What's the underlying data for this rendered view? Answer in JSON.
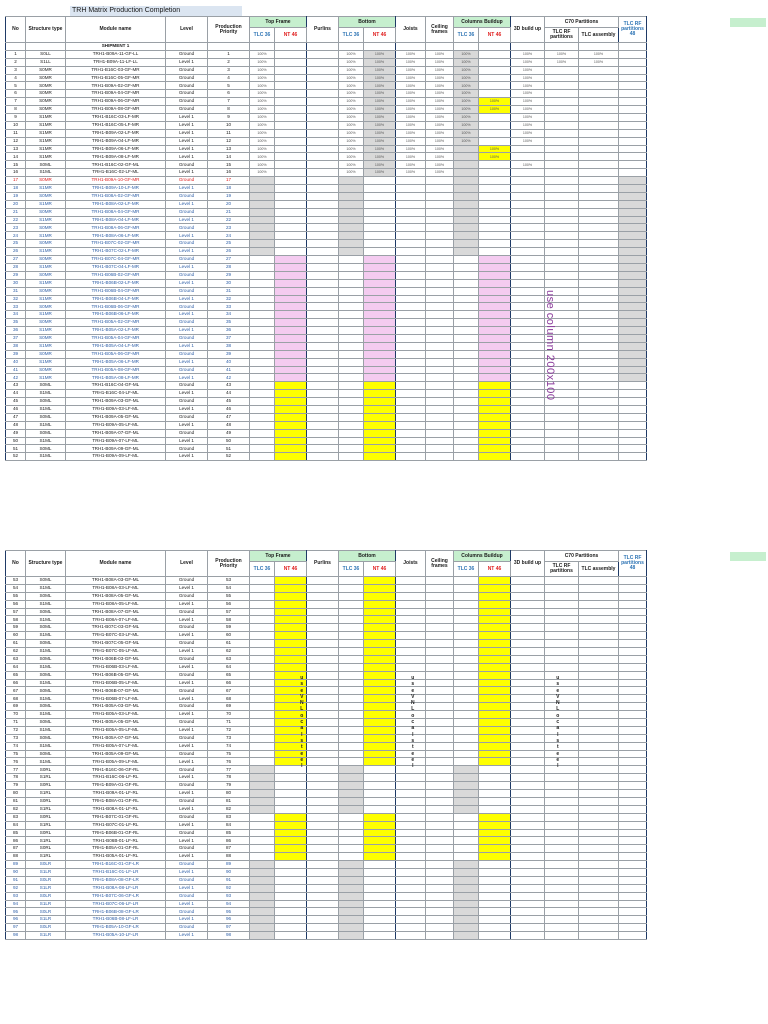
{
  "title": "TRH Matrix Production Completion",
  "headers": {
    "no": "No",
    "structure_type": "Structure type",
    "module_name": "Module name",
    "level": "Level",
    "priority": "Production Priority",
    "top_frame": "Top Frame",
    "purlins": "Purlins",
    "bottom": "Bottom",
    "joists": "Joists",
    "ceiling_frames": "Ceiling frames",
    "columns_buildup": "Columns Buildup",
    "build_3d": "3D build up",
    "c70": "C70 Partitions",
    "tlc_rf": "TLC RF partitions",
    "tlc_assembly": "TLC assembly",
    "tlc_rf_48": "TLC RF partitions 48",
    "tlc36": "TLC 36",
    "nt46": "NT 46"
  },
  "shipment_label": "SHIPMENT 1",
  "pct": "100%",
  "annotations": {
    "column_note": "use column 200x100",
    "vn_note": [
      "u",
      "s",
      "e",
      "",
      "V",
      "N",
      "",
      "L",
      "o",
      "c",
      "a",
      "l",
      "",
      "s",
      "t",
      "e",
      "e",
      "l"
    ]
  },
  "colors": {
    "gray": "#d9d9d9",
    "yellow": "#ffff00",
    "pink": "#f4cbf0",
    "green": "#c6efce",
    "blue_text": "#2e5fa8",
    "red_line": "#e02020"
  },
  "rows_page1": [
    [
      "1",
      "S0LL",
      "TRH1-B09A-11-GF-LL",
      "Ground",
      "1"
    ],
    [
      "2",
      "S1LL",
      "TRH1-B09A-11-LF-LL",
      "Level 1",
      "2"
    ],
    [
      "3",
      "S0MR",
      "TRH1-B16C-03-GF-MR",
      "Ground",
      "3"
    ],
    [
      "4",
      "S0MR",
      "TRH1-B16C-05-GF-MR",
      "Ground",
      "4"
    ],
    [
      "5",
      "S0MR",
      "TRH1-B09A-02-GF-MR",
      "Ground",
      "5"
    ],
    [
      "6",
      "S0MR",
      "TRH1-B09A-04-GF-MR",
      "Ground",
      "6"
    ],
    [
      "7",
      "S0MR",
      "TRH1-B09A-06-GF-MR",
      "Ground",
      "7"
    ],
    [
      "8",
      "S0MR",
      "TRH1-B09A-08-GF-MR",
      "Ground",
      "8"
    ],
    [
      "9",
      "S1MR",
      "TRH1-B16C-03-LF-MR",
      "Level 1",
      "9"
    ],
    [
      "10",
      "S1MR",
      "TRH1-B16C-05-LF-MR",
      "Level 1",
      "10"
    ],
    [
      "11",
      "S1MR",
      "TRH1-B09A-02-LF-MR",
      "Level 1",
      "11"
    ],
    [
      "12",
      "S1MR",
      "TRH1-B09A-04-LF-MR",
      "Level 1",
      "12"
    ],
    [
      "13",
      "S1MR",
      "TRH1-B09A-06-LF-MR",
      "Level 1",
      "13"
    ],
    [
      "14",
      "S1MR",
      "TRH1-B09A-08-LF-MR",
      "Level 1",
      "14"
    ],
    [
      "15",
      "S0ML",
      "TRH1-B16C-02-GF-ML",
      "Ground",
      "15"
    ],
    [
      "16",
      "S1ML",
      "TRH1-B16C-02-LF-ML",
      "Level 1",
      "16"
    ],
    [
      "17",
      "S0MR",
      "TRH1-B09A-10-GF-MR",
      "Ground",
      "17"
    ],
    [
      "18",
      "S1MR",
      "TRH1-B09A-10-LF-MR",
      "Level 1",
      "18"
    ],
    [
      "19",
      "S0MR",
      "TRH1-B08A-02-GF-MR",
      "Ground",
      "19"
    ],
    [
      "20",
      "S1MR",
      "TRH1-B08A-02-LF-MR",
      "Level 1",
      "20"
    ],
    [
      "21",
      "S0MR",
      "TRH1-B08A-04-GF-MR",
      "Ground",
      "21"
    ],
    [
      "22",
      "S1MR",
      "TRH1-B08A-04-LF-MR",
      "Level 1",
      "22"
    ],
    [
      "23",
      "S0MR",
      "TRH1-B08A-06-GF-MR",
      "Ground",
      "23"
    ],
    [
      "24",
      "S1MR",
      "TRH1-B08A-06-LF-MR",
      "Level 1",
      "24"
    ],
    [
      "25",
      "S0MR",
      "TRH1-B07C-02-GF-MR",
      "Ground",
      "25"
    ],
    [
      "26",
      "S1MR",
      "TRH1-B07C-02-LF-MR",
      "Level 1",
      "26"
    ],
    [
      "27",
      "S0MR",
      "TRH1-B07C-04-GF-MR",
      "Ground",
      "27"
    ],
    [
      "28",
      "S1MR",
      "TRH1-B07C-04-LF-MR",
      "Level 1",
      "28"
    ],
    [
      "29",
      "S0MR",
      "TRH1-B06B-02-GF-MR",
      "Ground",
      "29"
    ],
    [
      "30",
      "S1MR",
      "TRH1-B06B-02-LF-MR",
      "Level 1",
      "30"
    ],
    [
      "31",
      "S0MR",
      "TRH1-B06B-04-GF-MR",
      "Ground",
      "31"
    ],
    [
      "32",
      "S1MR",
      "TRH1-B06B-04-LF-MR",
      "Level 1",
      "32"
    ],
    [
      "33",
      "S0MR",
      "TRH1-B06B-06-GF-MR",
      "Ground",
      "33"
    ],
    [
      "34",
      "S1MR",
      "TRH1-B06B-06-LF-MR",
      "Level 1",
      "34"
    ],
    [
      "35",
      "S0MR",
      "TRH1-B05A-02-GF-MR",
      "Ground",
      "35"
    ],
    [
      "36",
      "S1MR",
      "TRH1-B05A-02-LF-MR",
      "Level 1",
      "36"
    ],
    [
      "37",
      "S0MR",
      "TRH1-B05A-04-GF-MR",
      "Ground",
      "37"
    ],
    [
      "38",
      "S1MR",
      "TRH1-B05A-04-LF-MR",
      "Level 1",
      "38"
    ],
    [
      "39",
      "S0MR",
      "TRH1-B05A-06-GF-MR",
      "Ground",
      "39"
    ],
    [
      "40",
      "S1MR",
      "TRH1-B05A-06-LF-MR",
      "Level 1",
      "40"
    ],
    [
      "41",
      "S0MR",
      "TRH1-B05A-08-GF-MR",
      "Ground",
      "41"
    ],
    [
      "42",
      "S1MR",
      "TRH1-B05A-08-LF-MR",
      "Level 1",
      "42"
    ],
    [
      "43",
      "S0ML",
      "TRH1-B16C-04-GF-ML",
      "Ground",
      "43"
    ],
    [
      "44",
      "S1ML",
      "TRH1-B16C-04-LF-ML",
      "Level 1",
      "44"
    ],
    [
      "45",
      "S0ML",
      "TRH1-B09A-03-GF-ML",
      "Ground",
      "45"
    ],
    [
      "46",
      "S1ML",
      "TRH1-B09A-03-LF-ML",
      "Level 1",
      "46"
    ],
    [
      "47",
      "S0ML",
      "TRH1-B09A-05-GF-ML",
      "Ground",
      "47"
    ],
    [
      "48",
      "S1ML",
      "TRH1-B09A-05-LF-ML",
      "Level 1",
      "48"
    ],
    [
      "49",
      "S0ML",
      "TRH1-B09A-07-GF-ML",
      "Ground",
      "49"
    ],
    [
      "50",
      "S1ML",
      "TRH1-B09A-07-LF-ML",
      "Level 1",
      "50"
    ],
    [
      "51",
      "S0ML",
      "TRH1-B09A-09-GF-ML",
      "Ground",
      "51"
    ],
    [
      "52",
      "S1ML",
      "TRH1-B09A-09-LF-ML",
      "Level 1",
      "52"
    ]
  ],
  "rows_page2": [
    [
      "53",
      "S0ML",
      "TRH1-B08A-03-GF-ML",
      "Ground",
      "53"
    ],
    [
      "54",
      "S1ML",
      "TRH1-B08A-03-LF-ML",
      "Level 1",
      "54"
    ],
    [
      "55",
      "S0ML",
      "TRH1-B08A-05-GF-ML",
      "Ground",
      "55"
    ],
    [
      "56",
      "S1ML",
      "TRH1-B08A-05-LF-ML",
      "Level 1",
      "56"
    ],
    [
      "57",
      "S0ML",
      "TRH1-B08A-07-GF-ML",
      "Ground",
      "57"
    ],
    [
      "58",
      "S1ML",
      "TRH1-B08A-07-LF-ML",
      "Level 1",
      "58"
    ],
    [
      "59",
      "S0ML",
      "TRH1-B07C-03-GF-ML",
      "Ground",
      "59"
    ],
    [
      "60",
      "S1ML",
      "TRH1-B07C-03-LF-ML",
      "Level 1",
      "60"
    ],
    [
      "61",
      "S0ML",
      "TRH1-B07C-05-GF-ML",
      "Ground",
      "61"
    ],
    [
      "62",
      "S1ML",
      "TRH1-B07C-05-LF-ML",
      "Level 1",
      "62"
    ],
    [
      "63",
      "S0ML",
      "TRH1-B06B-03-GF-ML",
      "Ground",
      "63"
    ],
    [
      "64",
      "S1ML",
      "TRH1-B06B-03-LF-ML",
      "Level 1",
      "64"
    ],
    [
      "65",
      "S0ML",
      "TRH1-B06B-05-GF-ML",
      "Ground",
      "65"
    ],
    [
      "66",
      "S1ML",
      "TRH1-B06B-05-LF-ML",
      "Level 1",
      "66"
    ],
    [
      "67",
      "S0ML",
      "TRH1-B06B-07-GF-ML",
      "Ground",
      "67"
    ],
    [
      "68",
      "S1ML",
      "TRH1-B06B-07-LF-ML",
      "Level 1",
      "68"
    ],
    [
      "69",
      "S0ML",
      "TRH1-B05A-03-GF-ML",
      "Ground",
      "69"
    ],
    [
      "70",
      "S1ML",
      "TRH1-B05A-03-LF-ML",
      "Level 1",
      "70"
    ],
    [
      "71",
      "S0ML",
      "TRH1-B05A-05-GF-ML",
      "Ground",
      "71"
    ],
    [
      "72",
      "S1ML",
      "TRH1-B05A-05-LF-ML",
      "Level 1",
      "72"
    ],
    [
      "73",
      "S0ML",
      "TRH1-B05A-07-GF-ML",
      "Ground",
      "73"
    ],
    [
      "74",
      "S1ML",
      "TRH1-B05A-07-LF-ML",
      "Level 1",
      "74"
    ],
    [
      "75",
      "S0ML",
      "TRH1-B05A-09-GF-ML",
      "Ground",
      "75"
    ],
    [
      "76",
      "S1ML",
      "TRH1-B05A-09-LF-ML",
      "Level 1",
      "76"
    ],
    [
      "77",
      "S0RL",
      "TRH1-B16C-06-GF-RL",
      "Ground",
      "77"
    ],
    [
      "78",
      "S1RL",
      "TRH1-B16C-06-LF-RL",
      "Level 1",
      "78"
    ],
    [
      "79",
      "S0RL",
      "TRH1-B09A-01-GF-RL",
      "Ground",
      "79"
    ],
    [
      "80",
      "S1RL",
      "TRH1-B09A-01-LF-RL",
      "Level 1",
      "80"
    ],
    [
      "81",
      "S0RL",
      "TRH1-B08A-01-GF-RL",
      "Ground",
      "81"
    ],
    [
      "82",
      "S1RL",
      "TRH1-B08A-01-LF-RL",
      "Level 1",
      "82"
    ],
    [
      "83",
      "S0RL",
      "TRH1-B07C-01-GF-RL",
      "Ground",
      "83"
    ],
    [
      "84",
      "S1RL",
      "TRH1-B07C-01-LF-RL",
      "Level 1",
      "84"
    ],
    [
      "85",
      "S0RL",
      "TRH1-B06B-01-GF-RL",
      "Ground",
      "85"
    ],
    [
      "86",
      "S1RL",
      "TRH1-B06B-01-LF-RL",
      "Level 1",
      "86"
    ],
    [
      "87",
      "S0RL",
      "TRH1-B05A-01-GF-RL",
      "Ground",
      "87"
    ],
    [
      "88",
      "S1RL",
      "TRH1-B05A-01-LF-RL",
      "Level 1",
      "88"
    ],
    [
      "89",
      "S0LR",
      "TRH1-B16C-01-GF-LR",
      "Ground",
      "89"
    ],
    [
      "90",
      "S1LR",
      "TRH1-B16C-01-LF-LR",
      "Level 1",
      "90"
    ],
    [
      "91",
      "S0LR",
      "TRH1-B08A-08-GF-LR",
      "Ground",
      "91"
    ],
    [
      "92",
      "S1LR",
      "TRH1-B08A-08-LF-LR",
      "Level 1",
      "92"
    ],
    [
      "93",
      "S0LR",
      "TRH1-B07C-06-GF-LR",
      "Ground",
      "93"
    ],
    [
      "94",
      "S1LR",
      "TRH1-B07C-06-LF-LR",
      "Level 1",
      "94"
    ],
    [
      "95",
      "S0LR",
      "TRH1-B06B-08-GF-LR",
      "Ground",
      "95"
    ],
    [
      "96",
      "S1LR",
      "TRH1-B06B-08-LF-LR",
      "Level 1",
      "96"
    ],
    [
      "97",
      "S0LR",
      "TRH1-B05A-10-GF-LR",
      "Ground",
      "97"
    ],
    [
      "98",
      "S1LR",
      "TRH1-B05A-10-LF-LR",
      "Level 1",
      "98"
    ]
  ]
}
